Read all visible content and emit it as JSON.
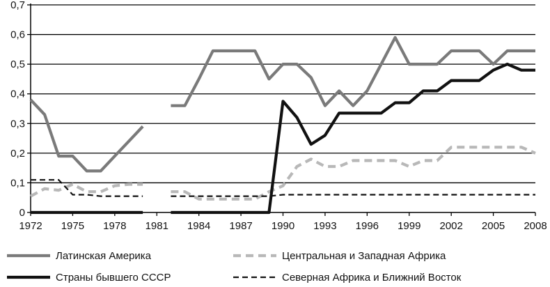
{
  "chart_data": {
    "type": "line",
    "title": "",
    "xlabel": "",
    "ylabel": "",
    "xlim": [
      1972,
      2008
    ],
    "ylim": [
      0,
      0.7
    ],
    "grid": "horizontal",
    "legend_position": "bottom",
    "x_ticks": [
      1972,
      1975,
      1978,
      1981,
      1984,
      1987,
      1990,
      1993,
      1996,
      1999,
      2002,
      2005,
      2008
    ],
    "y_ticks": [
      0,
      0.1,
      0.2,
      0.3,
      0.4,
      0.5,
      0.6,
      0.7
    ],
    "x_tick_labels": [
      "1972",
      "1975",
      "1978",
      "1981",
      "1984",
      "1987",
      "1990",
      "1993",
      "1996",
      "1999",
      "2002",
      "2005",
      "2008"
    ],
    "y_tick_labels": [
      "0",
      "0,1",
      "0,2",
      "0,3",
      "0,4",
      "0,5",
      "0,6",
      "0,7"
    ],
    "series": [
      {
        "name": "Латинская Америка",
        "color": "#7a7a7a",
        "style": "solid-thick",
        "segments": [
          [
            [
              1972,
              0.38
            ],
            [
              1973,
              0.33
            ],
            [
              1974,
              0.19
            ],
            [
              1975,
              0.19
            ],
            [
              1976,
              0.14
            ],
            [
              1977,
              0.14
            ],
            [
              1978,
              0.19
            ],
            [
              1979,
              0.24
            ],
            [
              1980,
              0.29
            ]
          ],
          [
            [
              1982,
              0.36
            ],
            [
              1983,
              0.36
            ],
            [
              1984,
              0.45
            ],
            [
              1985,
              0.545
            ],
            [
              1986,
              0.545
            ],
            [
              1987,
              0.545
            ],
            [
              1988,
              0.545
            ],
            [
              1989,
              0.45
            ],
            [
              1990,
              0.5
            ],
            [
              1991,
              0.5
            ],
            [
              1992,
              0.455
            ],
            [
              1993,
              0.36
            ],
            [
              1994,
              0.41
            ],
            [
              1995,
              0.36
            ],
            [
              1996,
              0.41
            ],
            [
              1997,
              0.5
            ],
            [
              1998,
              0.59
            ],
            [
              1999,
              0.5
            ],
            [
              2000,
              0.5
            ],
            [
              2001,
              0.5
            ],
            [
              2002,
              0.545
            ],
            [
              2003,
              0.545
            ],
            [
              2004,
              0.545
            ],
            [
              2005,
              0.5
            ],
            [
              2006,
              0.545
            ],
            [
              2007,
              0.545
            ],
            [
              2008,
              0.545
            ]
          ]
        ]
      },
      {
        "name": "Центральная и Западная Африка",
        "color": "#b8b8b8",
        "style": "dashed-thick",
        "segments": [
          [
            [
              1972,
              0.055
            ],
            [
              1973,
              0.08
            ],
            [
              1974,
              0.075
            ],
            [
              1975,
              0.095
            ],
            [
              1976,
              0.07
            ],
            [
              1977,
              0.07
            ],
            [
              1978,
              0.09
            ],
            [
              1979,
              0.095
            ],
            [
              1980,
              0.095
            ]
          ],
          [
            [
              1982,
              0.07
            ],
            [
              1983,
              0.07
            ],
            [
              1984,
              0.045
            ],
            [
              1985,
              0.045
            ],
            [
              1986,
              0.045
            ],
            [
              1987,
              0.045
            ],
            [
              1988,
              0.045
            ],
            [
              1989,
              0.07
            ],
            [
              1990,
              0.09
            ],
            [
              1991,
              0.155
            ],
            [
              1992,
              0.18
            ],
            [
              1993,
              0.155
            ],
            [
              1994,
              0.155
            ],
            [
              1995,
              0.175
            ],
            [
              1996,
              0.175
            ],
            [
              1997,
              0.175
            ],
            [
              1998,
              0.175
            ],
            [
              1999,
              0.155
            ],
            [
              2000,
              0.175
            ],
            [
              2001,
              0.175
            ],
            [
              2002,
              0.22
            ],
            [
              2003,
              0.22
            ],
            [
              2004,
              0.22
            ],
            [
              2005,
              0.22
            ],
            [
              2006,
              0.22
            ],
            [
              2007,
              0.22
            ],
            [
              2008,
              0.2
            ]
          ]
        ]
      },
      {
        "name": "Страны бывшего СССР",
        "color": "#111111",
        "style": "solid-thick",
        "segments": [
          [
            [
              1972,
              0
            ],
            [
              1980,
              0
            ]
          ],
          [
            [
              1982,
              0
            ],
            [
              1989,
              0
            ],
            [
              1990,
              0.375
            ],
            [
              1991,
              0.32
            ],
            [
              1992,
              0.23
            ],
            [
              1993,
              0.26
            ],
            [
              1994,
              0.335
            ],
            [
              1995,
              0.335
            ],
            [
              1996,
              0.335
            ],
            [
              1997,
              0.335
            ],
            [
              1998,
              0.37
            ],
            [
              1999,
              0.37
            ],
            [
              2000,
              0.41
            ],
            [
              2001,
              0.41
            ],
            [
              2002,
              0.445
            ],
            [
              2003,
              0.445
            ],
            [
              2004,
              0.445
            ],
            [
              2005,
              0.48
            ],
            [
              2006,
              0.5
            ],
            [
              2007,
              0.48
            ],
            [
              2008,
              0.48
            ]
          ]
        ]
      },
      {
        "name": "Северная Африка и Ближний Восток",
        "color": "#111111",
        "style": "dashed-thin",
        "segments": [
          [
            [
              1972,
              0.11
            ],
            [
              1973,
              0.11
            ],
            [
              1974,
              0.11
            ],
            [
              1975,
              0.06
            ],
            [
              1976,
              0.06
            ],
            [
              1977,
              0.055
            ],
            [
              1978,
              0.055
            ],
            [
              1979,
              0.055
            ],
            [
              1980,
              0.055
            ]
          ],
          [
            [
              1982,
              0.055
            ],
            [
              1989,
              0.055
            ],
            [
              1990,
              0.06
            ],
            [
              2008,
              0.06
            ]
          ]
        ]
      }
    ]
  }
}
